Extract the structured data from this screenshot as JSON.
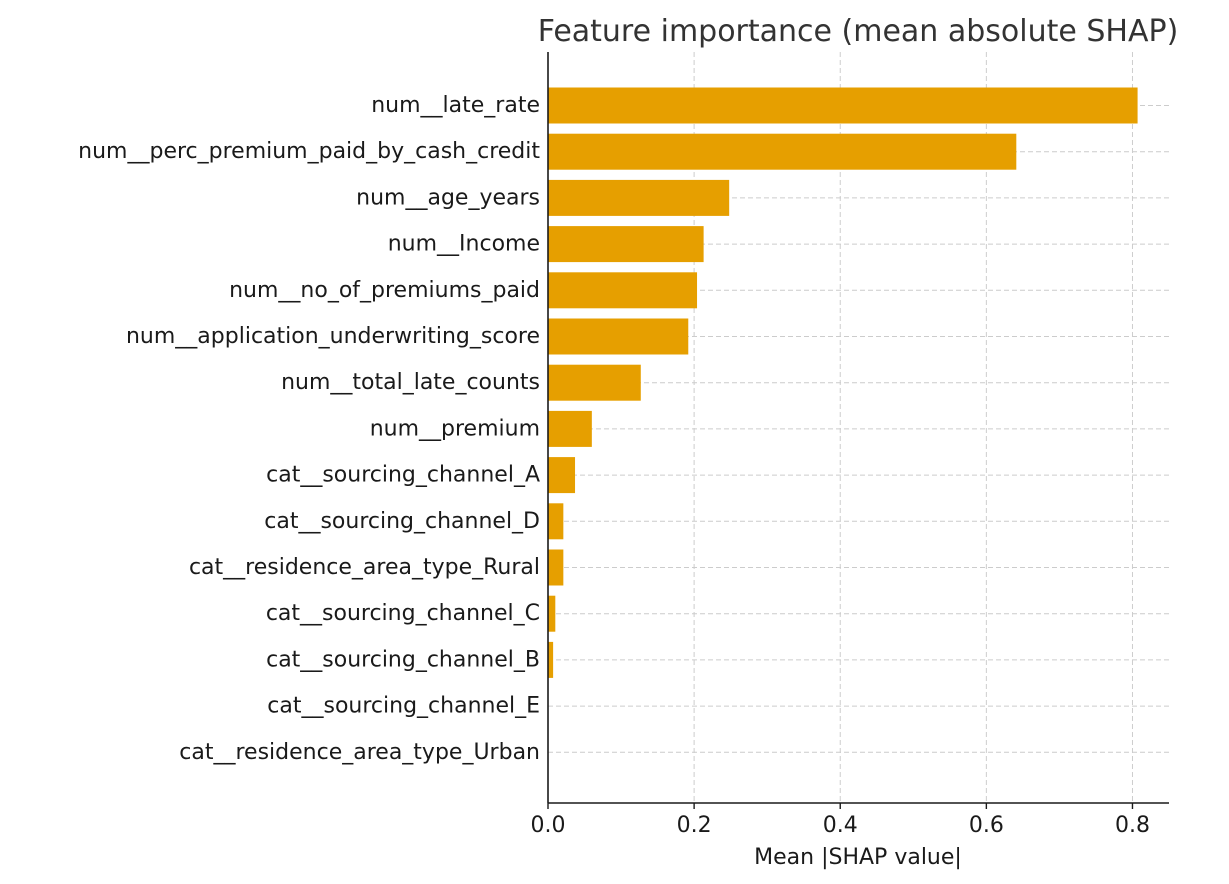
{
  "chart_data": {
    "type": "bar",
    "orientation": "horizontal",
    "title": "Feature importance (mean absolute SHAP)",
    "xlabel": "Mean |SHAP value|",
    "ylabel": "",
    "xlim": [
      0,
      0.85
    ],
    "xticks": [
      0.0,
      0.2,
      0.4,
      0.6,
      0.8
    ],
    "xtick_labels": [
      "0.0",
      "0.2",
      "0.4",
      "0.6",
      "0.8"
    ],
    "grid": true,
    "bar_color": "#e69f00",
    "categories": [
      "num__late_rate",
      "num__perc_premium_paid_by_cash_credit",
      "num__age_years",
      "num__Income",
      "num__no_of_premiums_paid",
      "num__application_underwriting_score",
      "num__total_late_counts",
      "num__premium",
      "cat__sourcing_channel_A",
      "cat__sourcing_channel_D",
      "cat__residence_area_type_Rural",
      "cat__sourcing_channel_C",
      "cat__sourcing_channel_B",
      "cat__sourcing_channel_E",
      "cat__residence_area_type_Urban"
    ],
    "values": [
      0.807,
      0.641,
      0.248,
      0.213,
      0.204,
      0.192,
      0.127,
      0.06,
      0.037,
      0.021,
      0.021,
      0.01,
      0.007,
      0.0,
      0.0
    ]
  }
}
